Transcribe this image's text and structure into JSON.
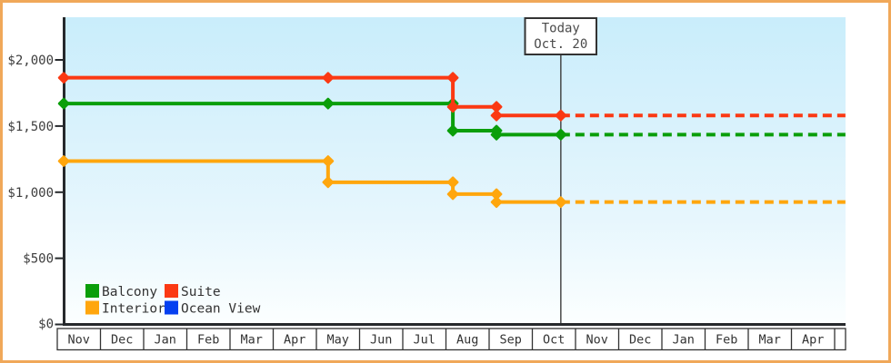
{
  "chart_data": {
    "type": "line",
    "subtype": "step-price-history",
    "grid": false,
    "legend_position": "bottom-left",
    "y_axis": {
      "min": 0,
      "max": 2000,
      "ticks": [
        {
          "value": 0,
          "label": "$0"
        },
        {
          "value": 500,
          "label": "$500"
        },
        {
          "value": 1000,
          "label": "$1,000"
        },
        {
          "value": 1500,
          "label": "$1,500"
        },
        {
          "value": 2000,
          "label": "$2,000"
        }
      ]
    },
    "x_axis": {
      "months": [
        "Nov",
        "Dec",
        "Jan",
        "Feb",
        "Mar",
        "Apr",
        "May",
        "Jun",
        "Jul",
        "Aug",
        "Sep",
        "Oct",
        "Nov",
        "Dec",
        "Jan",
        "Feb",
        "Mar",
        "Apr"
      ],
      "total_months_shown": 18.25
    },
    "today_marker": {
      "line1": "Today",
      "line2": "Oct. 20",
      "month_position": 11.66
    },
    "series": [
      {
        "name": "Balcony",
        "color": "#0a9e0a",
        "points": [
          {
            "month_position": 0.15,
            "price": 1670
          },
          {
            "month_position": 6.27,
            "price": 1670
          },
          {
            "month_position": 9.16,
            "price": 1465
          },
          {
            "month_position": 10.17,
            "price": 1435
          },
          {
            "month_position": 11.66,
            "price": 1435
          }
        ],
        "forecast": {
          "price": 1435,
          "from": 11.66,
          "to": 18.25
        }
      },
      {
        "name": "Suite",
        "color": "#fb3913",
        "points": [
          {
            "month_position": 0.15,
            "price": 1865
          },
          {
            "month_position": 6.27,
            "price": 1865
          },
          {
            "month_position": 9.16,
            "price": 1645
          },
          {
            "month_position": 10.17,
            "price": 1580
          },
          {
            "month_position": 11.66,
            "price": 1580
          }
        ],
        "forecast": {
          "price": 1580,
          "from": 11.66,
          "to": 18.25
        }
      },
      {
        "name": "Interior",
        "color": "#ffa60d",
        "points": [
          {
            "month_position": 0.15,
            "price": 1235
          },
          {
            "month_position": 6.27,
            "price": 1075
          },
          {
            "month_position": 9.16,
            "price": 985
          },
          {
            "month_position": 10.17,
            "price": 925
          },
          {
            "month_position": 11.66,
            "price": 925
          }
        ],
        "forecast": {
          "price": 925,
          "from": 11.66,
          "to": 18.25
        }
      },
      {
        "name": "Ocean View",
        "color": "#0540f0",
        "points": []
      }
    ],
    "legend": {
      "items": [
        {
          "label": "Balcony",
          "color": "#0a9e0a"
        },
        {
          "label": "Suite",
          "color": "#fb3913"
        },
        {
          "label": "Interior",
          "color": "#ffa60d"
        },
        {
          "label": "Ocean View",
          "color": "#0540f0"
        }
      ]
    },
    "colors": {
      "plot_bg_top": "#c9edfb",
      "plot_bg_bottom": "#fcffff",
      "axis": "#26292c",
      "frame_border": "#f0a859"
    }
  }
}
